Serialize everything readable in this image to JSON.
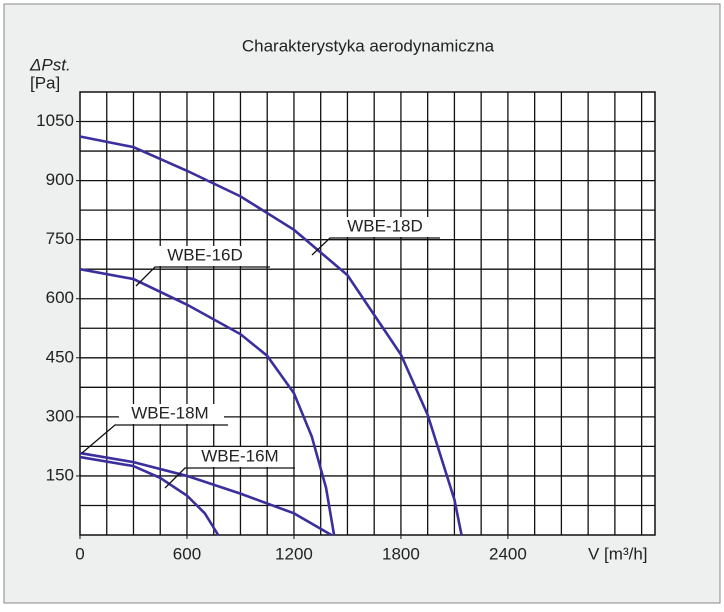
{
  "chart_data": {
    "type": "line",
    "title": "Charakterystyka aerodynamiczna",
    "y_label": "ΔPst.",
    "y_unit": "[Pa]",
    "x_label": "V [m³/h]",
    "xlim": [
      0,
      3225
    ],
    "ylim": [
      0,
      1125
    ],
    "xticks": [
      0,
      600,
      1200,
      1800,
      2400
    ],
    "yticks": [
      150,
      300,
      450,
      600,
      750,
      900,
      1050
    ],
    "grid": true,
    "x_grid": [
      150,
      300,
      450,
      600,
      750,
      900,
      1050,
      1200,
      1350,
      1500,
      1650,
      1800,
      1950,
      2100,
      2250,
      2400,
      2550,
      2700,
      2850,
      3000,
      3150
    ],
    "y_grid": [
      75,
      150,
      225,
      300,
      375,
      450,
      525,
      600,
      675,
      750,
      825,
      900,
      975,
      1050
    ],
    "series": [
      {
        "name": "WBE-18D",
        "color": "#3b2f9e",
        "x": [
          0,
          300,
          600,
          900,
          1200,
          1500,
          1800,
          1950,
          2100,
          2140
        ],
        "values": [
          1012,
          985,
          925,
          860,
          775,
          660,
          458,
          305,
          90,
          0
        ]
      },
      {
        "name": "WBE-16D",
        "color": "#3b2f9e",
        "x": [
          0,
          300,
          600,
          900,
          1050,
          1200,
          1300,
          1380,
          1425
        ],
        "values": [
          675,
          650,
          585,
          510,
          455,
          360,
          250,
          120,
          0
        ]
      },
      {
        "name": "WBE-18M",
        "color": "#3b2f9e",
        "x": [
          0,
          300,
          600,
          900,
          1200,
          1410
        ],
        "values": [
          208,
          185,
          150,
          105,
          55,
          0
        ]
      },
      {
        "name": "WBE-16M",
        "color": "#3b2f9e",
        "x": [
          0,
          300,
          450,
          600,
          700,
          775
        ],
        "values": [
          198,
          175,
          145,
          100,
          55,
          0
        ]
      }
    ]
  }
}
